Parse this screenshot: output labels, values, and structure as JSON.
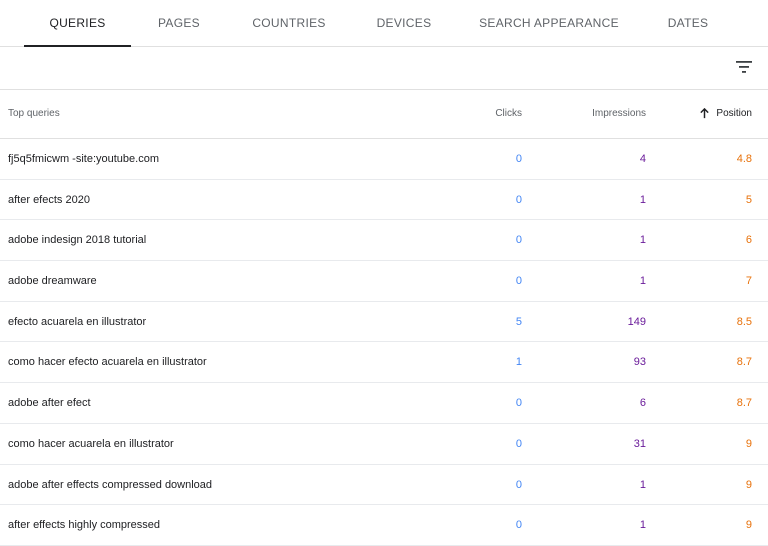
{
  "tabs": [
    {
      "label": "QUERIES",
      "active": true
    },
    {
      "label": "PAGES",
      "active": false
    },
    {
      "label": "COUNTRIES",
      "active": false
    },
    {
      "label": "DEVICES",
      "active": false
    },
    {
      "label": "SEARCH APPEARANCE",
      "active": false
    },
    {
      "label": "DATES",
      "active": false
    }
  ],
  "table": {
    "headers": {
      "query": "Top queries",
      "clicks": "Clicks",
      "impressions": "Impressions",
      "position": "Position"
    },
    "sort_icon": "arrow-up-icon",
    "rows": [
      {
        "query": "fj5q5fmicwm -site:youtube.com",
        "clicks": "0",
        "impressions": "4",
        "position": "4.8"
      },
      {
        "query": "after efects 2020",
        "clicks": "0",
        "impressions": "1",
        "position": "5"
      },
      {
        "query": "adobe indesign 2018 tutorial",
        "clicks": "0",
        "impressions": "1",
        "position": "6"
      },
      {
        "query": "adobe dreamware",
        "clicks": "0",
        "impressions": "1",
        "position": "7"
      },
      {
        "query": "efecto acuarela en illustrator",
        "clicks": "5",
        "impressions": "149",
        "position": "8.5"
      },
      {
        "query": "como hacer efecto acuarela en illustrator",
        "clicks": "1",
        "impressions": "93",
        "position": "8.7"
      },
      {
        "query": "adobe after efect",
        "clicks": "0",
        "impressions": "6",
        "position": "8.7"
      },
      {
        "query": "como hacer acuarela en illustrator",
        "clicks": "0",
        "impressions": "31",
        "position": "9"
      },
      {
        "query": "adobe after effects compressed download",
        "clicks": "0",
        "impressions": "1",
        "position": "9"
      },
      {
        "query": "after effects highly compressed",
        "clicks": "0",
        "impressions": "1",
        "position": "9"
      }
    ]
  },
  "colors": {
    "clicks": "#4285f4",
    "impressions": "#6a1b9a",
    "position": "#e8710a"
  },
  "filter_icon": "filter-icon"
}
